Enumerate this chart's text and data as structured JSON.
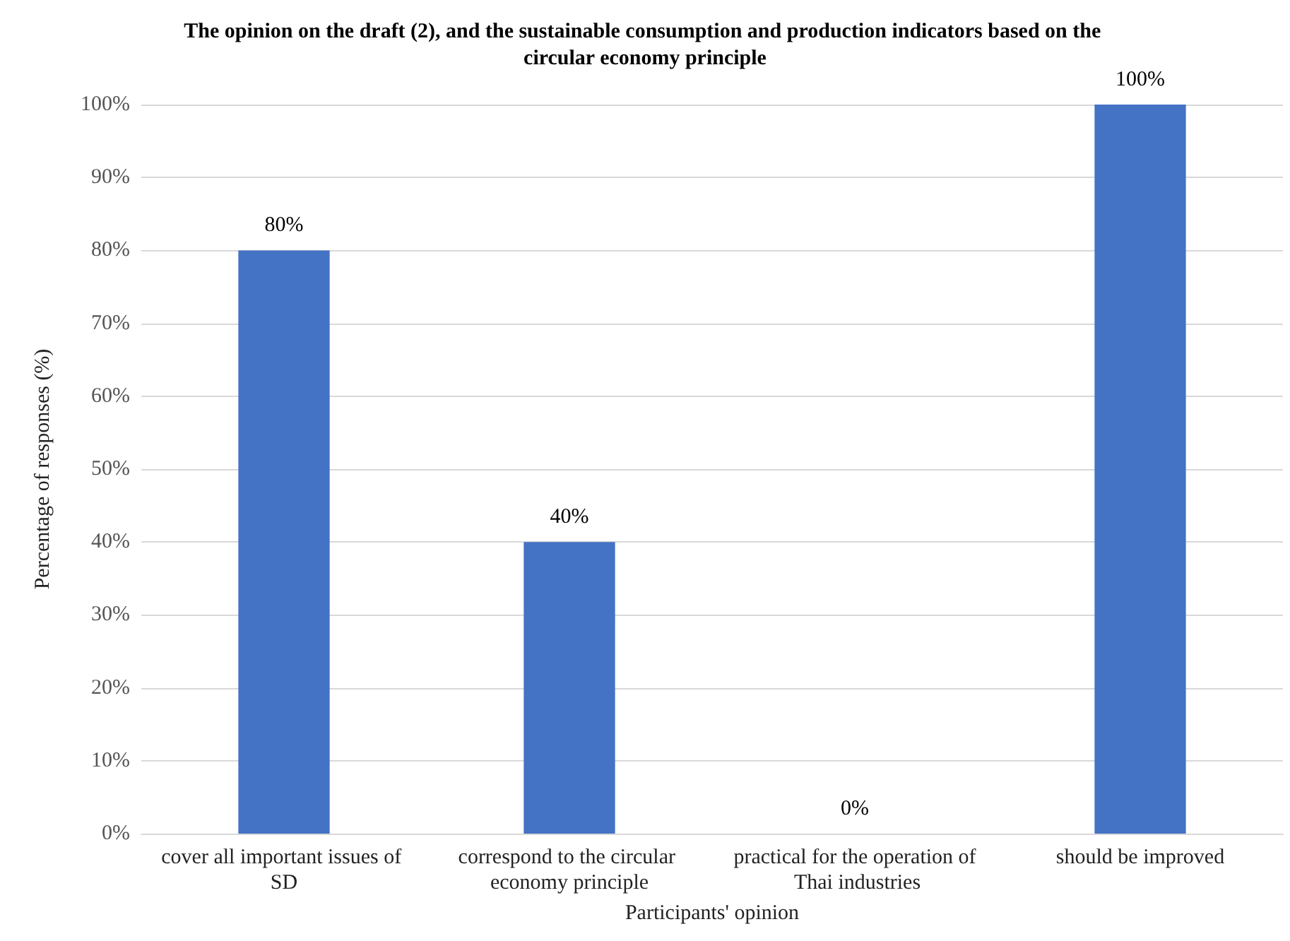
{
  "chart_data": {
    "type": "bar",
    "title": "The opinion on the draft (2), and the sustainable consumption and production indicators based on the circular economy principle",
    "xlabel": "Participants' opinion",
    "ylabel": "Percentage of responses (%)",
    "categories": [
      "cover all important issues of SD",
      "correspond to the circular economy principle",
      "practical for the operation of Thai industries",
      "should be improved"
    ],
    "values": [
      80,
      40,
      0,
      100
    ],
    "value_labels": [
      "80%",
      "40%",
      "0%",
      "100%"
    ],
    "color": "#4472c4",
    "ylim": [
      0,
      100
    ],
    "yticks": [
      {
        "value": 0,
        "label": "0%"
      },
      {
        "value": 10,
        "label": "10%"
      },
      {
        "value": 20,
        "label": "20%"
      },
      {
        "value": 30,
        "label": "30%"
      },
      {
        "value": 40,
        "label": "40%"
      },
      {
        "value": 50,
        "label": "50%"
      },
      {
        "value": 60,
        "label": "60%"
      },
      {
        "value": 70,
        "label": "70%"
      },
      {
        "value": 80,
        "label": "80%"
      },
      {
        "value": 90,
        "label": "90%"
      },
      {
        "value": 100,
        "label": "100%"
      }
    ],
    "grid": "y"
  }
}
